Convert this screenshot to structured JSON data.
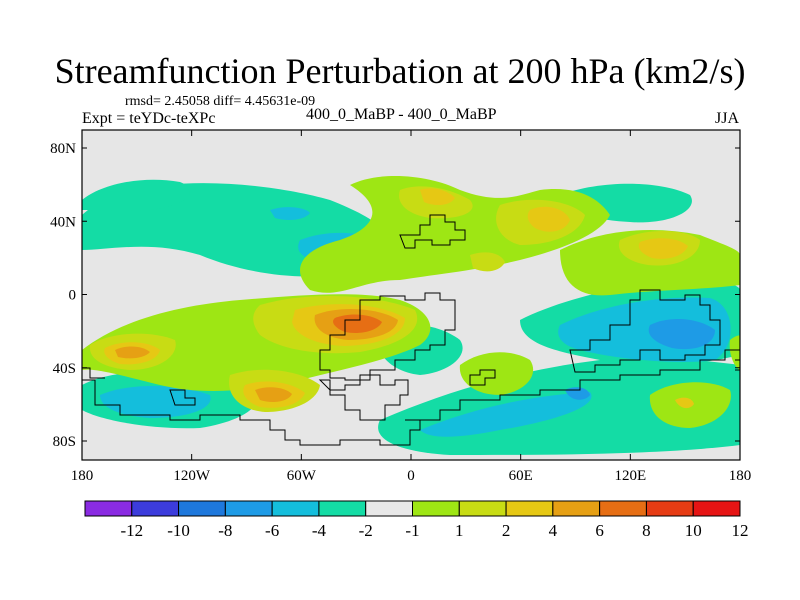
{
  "header": {
    "title": "Streamfunction Perturbation at 200 hPa (km2/s)",
    "stats": "rmsd= 2.45058 diff= 4.45631e-09",
    "expt": "Expt = teYDc-teXPc",
    "center_label": "400_0_MaBP - 400_0_MaBP",
    "season": "JJA"
  },
  "axes": {
    "lat_labels": [
      "80N",
      "40N",
      "0",
      "40S",
      "80S"
    ],
    "lon_labels": [
      "180",
      "120W",
      "60W",
      "0",
      "60E",
      "120E",
      "180"
    ]
  },
  "colorbar": {
    "labels": [
      "-12",
      "-10",
      "-8",
      "-6",
      "-4",
      "-2",
      "-1",
      "1",
      "2",
      "4",
      "6",
      "8",
      "10",
      "12"
    ],
    "colors": [
      "#8a2be2",
      "#3c3cdc",
      "#1e78dc",
      "#1e9be6",
      "#14bedc",
      "#14dca5",
      "#e8e8e8",
      "#9ee614",
      "#c8dc14",
      "#e6c814",
      "#e6a014",
      "#e66e14",
      "#e63c14",
      "#e61414"
    ]
  },
  "palette": {
    "background_field": "#e6e6e6",
    "neg_1": "#14dca5",
    "neg_2": "#14bedc",
    "neg_3": "#1e9be6",
    "pos_1": "#9ee614",
    "pos_2": "#c8dc14",
    "pos_3": "#e6c814",
    "pos_4": "#e6a014",
    "pos_5": "#e66e14"
  }
}
